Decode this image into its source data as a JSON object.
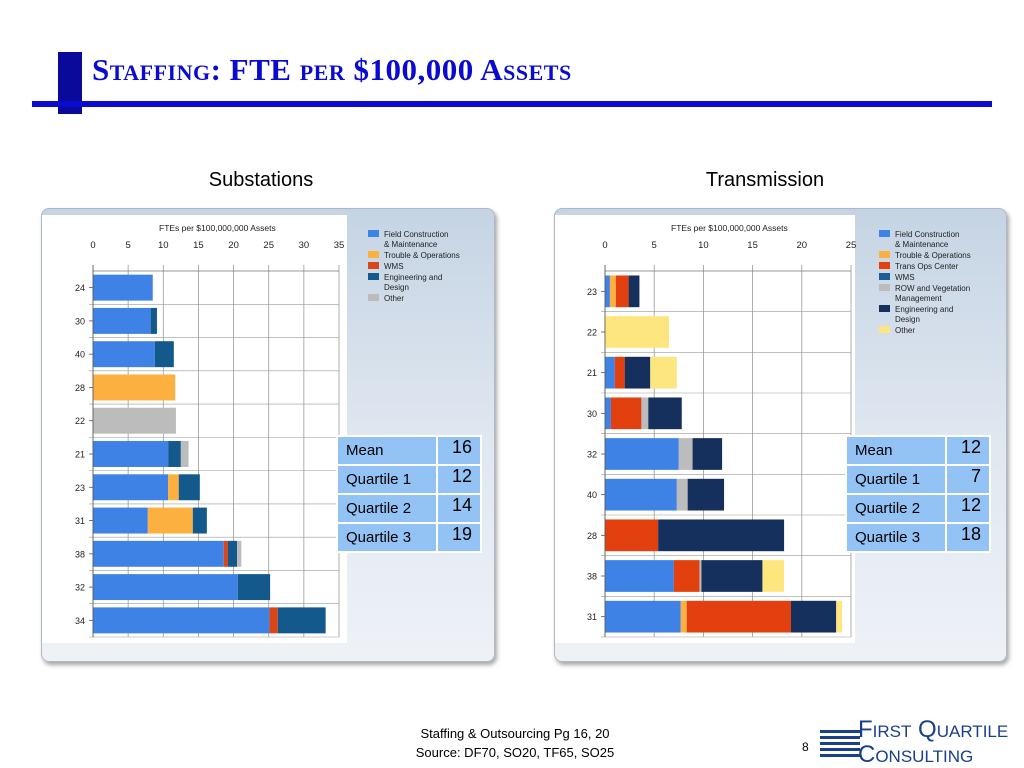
{
  "page": {
    "title": "Staffing: FTE per $100,000 Assets",
    "footer_line1": "Staffing & Outsourcing Pg 16, 20",
    "footer_line2": "Source: DF70, SO20, TF65, SO25",
    "page_number": "8"
  },
  "logo": {
    "line1": "First Quartile",
    "line2": "Consulting"
  },
  "substations": {
    "label": "Substations",
    "stats": [
      {
        "label": "Mean",
        "value": "16"
      },
      {
        "label": "Quartile 1",
        "value": "12"
      },
      {
        "label": "Quartile 2",
        "value": "14"
      },
      {
        "label": "Quartile 3",
        "value": "19"
      }
    ]
  },
  "transmission": {
    "label": "Transmission",
    "stats": [
      {
        "label": "Mean",
        "value": "12"
      },
      {
        "label": "Quartile 1",
        "value": "7"
      },
      {
        "label": "Quartile 2",
        "value": "12"
      },
      {
        "label": "Quartile 3",
        "value": "18"
      }
    ]
  },
  "chart_data": [
    {
      "type": "bar",
      "orientation": "horizontal",
      "stacked": true,
      "title": "FTEs per $100,000,000 Assets",
      "xlim": [
        0,
        35
      ],
      "xticks": [
        0,
        5,
        10,
        15,
        20,
        25,
        30,
        35
      ],
      "grid": true,
      "legend_position": "top-right",
      "categories": [
        "24",
        "30",
        "40",
        "28",
        "22",
        "21",
        "23",
        "31",
        "38",
        "32",
        "34"
      ],
      "series": [
        {
          "name": "Field Construction\n& Maintenance",
          "color": "#3f82e6",
          "values": [
            8.5,
            8.2,
            8.8,
            0,
            0,
            10.7,
            10.7,
            7.8,
            18.6,
            20.6,
            25.1
          ]
        },
        {
          "name": "Trouble & Operations",
          "color": "#fbb040",
          "values": [
            0,
            0,
            0,
            11.7,
            0,
            0,
            1.5,
            6.4,
            0,
            0,
            0
          ]
        },
        {
          "name": "WMS",
          "color": "#d8461a",
          "values": [
            0,
            0,
            0,
            0,
            0,
            0,
            0,
            0,
            0.6,
            0,
            1.2
          ]
        },
        {
          "name": "Engineering and\nDesign",
          "color": "#13598c",
          "values": [
            0,
            0.9,
            2.7,
            0,
            0,
            1.8,
            3.0,
            2.0,
            1.3,
            4.6,
            6.8
          ]
        },
        {
          "name": "Other",
          "color": "#bcbcbc",
          "values": [
            0,
            0,
            0,
            0,
            11.8,
            1.1,
            0,
            0,
            0.6,
            0,
            0
          ]
        }
      ]
    },
    {
      "type": "bar",
      "orientation": "horizontal",
      "stacked": true,
      "title": "FTEs per $100,000,000 Assets",
      "xlim": [
        0,
        25
      ],
      "xticks": [
        0,
        5,
        10,
        15,
        20,
        25
      ],
      "grid": true,
      "legend_position": "top-right",
      "categories": [
        "23",
        "22",
        "21",
        "30",
        "32",
        "40",
        "28",
        "38",
        "31"
      ],
      "series": [
        {
          "name": "Field Construction\n& Maintenance",
          "color": "#3f82e6",
          "values": [
            0.5,
            0,
            1.0,
            0.6,
            7.5,
            7.3,
            0,
            7.0,
            7.7
          ]
        },
        {
          "name": "Trouble & Operations",
          "color": "#fbb040",
          "values": [
            0.6,
            0,
            0,
            0,
            0,
            0,
            0,
            0,
            0.6
          ]
        },
        {
          "name": "Trans Ops Center",
          "color": "#e2400f",
          "values": [
            1.3,
            0,
            1.0,
            3.1,
            0,
            0,
            5.4,
            2.6,
            10.6
          ]
        },
        {
          "name": "WMS",
          "color": "#1c5e96",
          "values": [
            0,
            0,
            0,
            0,
            0,
            0,
            0,
            0,
            0
          ]
        },
        {
          "name": "ROW and Vegetation\nManagement",
          "color": "#bcbcbc",
          "values": [
            0,
            0,
            0,
            0.7,
            1.4,
            1.1,
            0,
            0.2,
            0
          ]
        },
        {
          "name": "Engineering and\nDesign",
          "color": "#15305c",
          "values": [
            1.1,
            0,
            2.6,
            3.4,
            3.0,
            3.7,
            12.8,
            6.2,
            4.6
          ]
        },
        {
          "name": "Other",
          "color": "#fde680",
          "values": [
            0,
            6.5,
            2.7,
            0,
            0,
            0,
            0,
            2.2,
            0.6
          ]
        }
      ]
    }
  ]
}
